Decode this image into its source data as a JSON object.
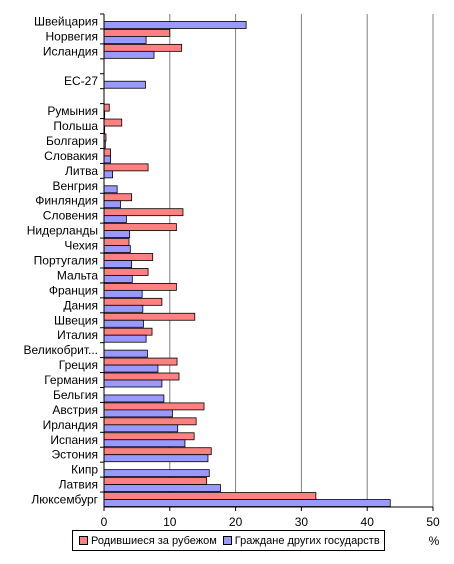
{
  "chart_data": {
    "type": "bar",
    "orientation": "horizontal",
    "categories": [
      "Швейцария",
      "Норвегия",
      "Исландия",
      "",
      "ЕС-27",
      "",
      "Румыния",
      "Польша",
      "Болгария",
      "Словакия",
      "Литва",
      "Венгрия",
      "Финляндия",
      "Словения",
      "Нидерланды",
      "Чехия",
      "Португалия",
      "Мальта",
      "Франция",
      "Дания",
      "Швеция",
      "Италия",
      "Великобрит...",
      "Греция",
      "Германия",
      "Бельгия",
      "Австрия",
      "Ирландия",
      "Испания",
      "Эстония",
      "Кипр",
      "Латвия",
      "Люксембург"
    ],
    "series": [
      {
        "name": "Родившиеся за рубежом",
        "color": "#ff8080",
        "values": [
          null,
          10.0,
          11.8,
          null,
          null,
          null,
          0.8,
          2.7,
          0.3,
          1.0,
          6.7,
          0.0,
          4.2,
          12.0,
          11.0,
          3.8,
          7.4,
          6.7,
          11.0,
          8.8,
          13.8,
          7.3,
          null,
          11.1,
          11.4,
          null,
          15.2,
          14.0,
          13.7,
          16.3,
          null,
          15.6,
          32.2
        ]
      },
      {
        "name": "Граждане других государств",
        "color": "#9999ff",
        "values": [
          21.6,
          6.4,
          7.6,
          null,
          6.3,
          null,
          0.1,
          0.1,
          0.2,
          1.0,
          1.3,
          2.0,
          2.5,
          3.4,
          3.9,
          4.0,
          4.2,
          4.3,
          5.8,
          5.9,
          6.0,
          6.4,
          6.6,
          8.2,
          8.8,
          9.1,
          10.4,
          11.2,
          12.3,
          15.8,
          16.0,
          17.7,
          43.5
        ]
      }
    ],
    "xlim": [
      0,
      50
    ],
    "xticks": [
      0,
      10,
      20,
      30,
      40,
      50
    ],
    "xlabel": "%",
    "grid": "vertical",
    "legend": "bottom"
  }
}
